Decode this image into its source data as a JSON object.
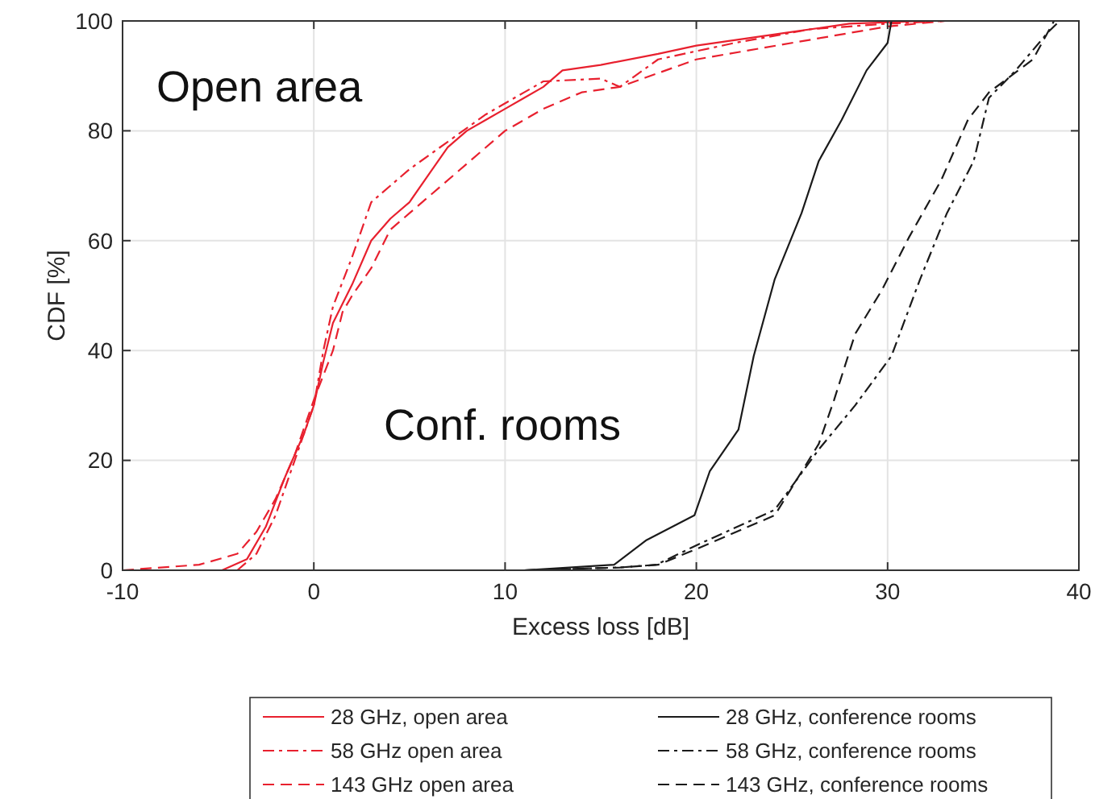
{
  "chart_data": {
    "type": "line",
    "xlabel": "Excess loss [dB]",
    "ylabel": "CDF [%]",
    "xlim": [
      -10,
      40
    ],
    "ylim": [
      0,
      100
    ],
    "xticks": [
      -10,
      0,
      10,
      20,
      30,
      40
    ],
    "yticks": [
      0,
      20,
      40,
      60,
      80,
      100
    ],
    "grid": true,
    "legend": "bottom",
    "marker": "none",
    "annotations": [
      "Open area",
      "Conf. rooms"
    ],
    "series": [
      {
        "name": "28 GHz, open area",
        "color": "#e8202e",
        "line_style": "solid",
        "x": [
          -4.8,
          -3.5,
          -2.5,
          -1.5,
          -0.5,
          0,
          0.5,
          1,
          2,
          3,
          4,
          5,
          6,
          7,
          8,
          9,
          10,
          11,
          12,
          13,
          15,
          18,
          20,
          25,
          28,
          32
        ],
        "values": [
          0,
          2,
          8,
          17,
          25,
          30,
          38,
          45,
          52,
          60,
          64,
          67,
          72,
          77,
          80,
          82,
          84,
          86,
          88,
          91,
          92,
          94,
          95.5,
          98,
          99.5,
          100
        ]
      },
      {
        "name": "58 GHz open area",
        "color": "#e8202e",
        "line_style": "dashdot",
        "x": [
          -4,
          -3,
          -2,
          -1,
          0,
          0.5,
          1,
          2,
          3,
          5,
          7,
          9,
          11,
          12,
          15,
          16,
          18,
          22,
          26,
          30,
          33
        ],
        "values": [
          0,
          3,
          10,
          20,
          30,
          40,
          48,
          57,
          67,
          73,
          78,
          83,
          87,
          89,
          89.5,
          88,
          93,
          96,
          98.5,
          99.5,
          100
        ]
      },
      {
        "name": "143 GHz open area",
        "color": "#e8202e",
        "line_style": "dashed",
        "x": [
          -10,
          -6,
          -4,
          -3,
          -2,
          -1,
          0,
          1,
          1.5,
          2,
          3,
          4,
          6,
          8,
          10,
          12,
          14,
          16,
          20,
          25,
          30,
          33
        ],
        "values": [
          0,
          1,
          3,
          7,
          13,
          21,
          31,
          40,
          47,
          50,
          55,
          62,
          68,
          74,
          80,
          84,
          87,
          88,
          93,
          96,
          99,
          100
        ]
      },
      {
        "name": "28 GHz, conference rooms",
        "color": "#1a1a1a",
        "line_style": "solid",
        "x": [
          11,
          15.7,
          17.4,
          19.9,
          20.7,
          22.2,
          23,
          24.1,
          25.5,
          26.4,
          27.6,
          28.9,
          30,
          30.2,
          40
        ],
        "values": [
          0,
          1,
          5.5,
          10,
          18,
          25.6,
          39,
          53,
          65,
          74.5,
          82,
          91,
          96,
          100,
          100
        ]
      },
      {
        "name": "58 GHz, conference rooms",
        "color": "#1a1a1a",
        "line_style": "dashdot",
        "x": [
          11,
          16,
          17.9,
          20.1,
          24.1,
          26.4,
          28.3,
          30.2,
          31.7,
          33.1,
          34.5,
          35.3,
          36.7,
          38.4,
          39,
          40
        ],
        "values": [
          0,
          0.5,
          1,
          4.7,
          11,
          22,
          30,
          39,
          53,
          65,
          74.5,
          86,
          91,
          98,
          100,
          100
        ]
      },
      {
        "name": "143 GHz, conference rooms",
        "color": "#1a1a1a",
        "line_style": "dashed",
        "x": [
          11,
          16,
          18,
          20.1,
          24.1,
          26.4,
          27.2,
          28.3,
          29.7,
          31.1,
          32.8,
          34.2,
          35.3,
          37.6,
          38.7,
          40
        ],
        "values": [
          0,
          0.5,
          1,
          4,
          10,
          23,
          31,
          43,
          51,
          60.5,
          71,
          82,
          87,
          93,
          100,
          100
        ]
      }
    ]
  }
}
